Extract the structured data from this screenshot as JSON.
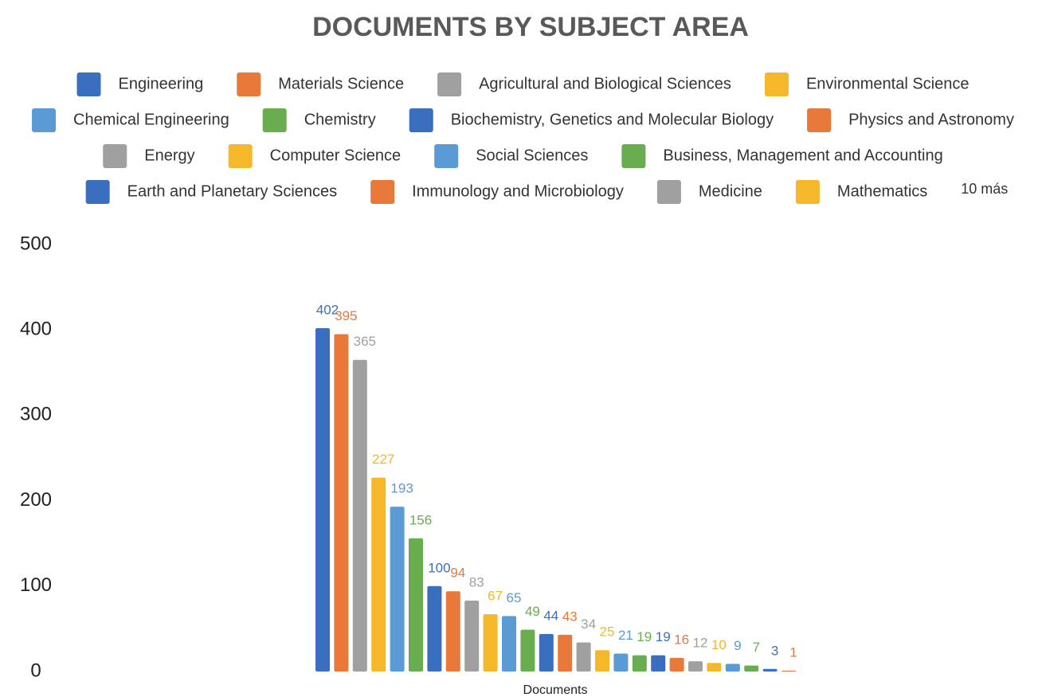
{
  "chart_data": {
    "type": "bar",
    "title": "DOCUMENTS BY SUBJECT AREA",
    "categories": [
      "Documents"
    ],
    "x_label": "Documents",
    "legend_more": "10 más",
    "ylim": [
      0,
      500
    ],
    "yticks": [
      0,
      100,
      200,
      300,
      400,
      500
    ],
    "grid": false,
    "data_labels": true,
    "series": [
      {
        "name": "Engineering",
        "color": "#3a6fbf",
        "values": [
          402
        ]
      },
      {
        "name": "Materials Science",
        "color": "#e8793a",
        "values": [
          395
        ]
      },
      {
        "name": "Agricultural and Biological Sciences",
        "color": "#a0a0a0",
        "values": [
          365
        ]
      },
      {
        "name": "Environmental Science",
        "color": "#f4b82a",
        "values": [
          227
        ]
      },
      {
        "name": "Chemical Engineering",
        "color": "#5a9bd5",
        "values": [
          193
        ]
      },
      {
        "name": "Chemistry",
        "color": "#6aad50",
        "values": [
          156
        ]
      },
      {
        "name": "Biochemistry, Genetics and Molecular Biology",
        "color": "#3a6fbf",
        "values": [
          100
        ]
      },
      {
        "name": "Physics and Astronomy",
        "color": "#e8793a",
        "values": [
          94
        ]
      },
      {
        "name": "Energy",
        "color": "#a0a0a0",
        "values": [
          83
        ]
      },
      {
        "name": "Computer Science",
        "color": "#f4b82a",
        "values": [
          67
        ]
      },
      {
        "name": "Social Sciences",
        "color": "#5a9bd5",
        "values": [
          65
        ]
      },
      {
        "name": "Business, Management and Accounting",
        "color": "#6aad50",
        "values": [
          49
        ]
      },
      {
        "name": "Earth and Planetary Sciences",
        "color": "#3a6fbf",
        "values": [
          44
        ]
      },
      {
        "name": "Immunology and Microbiology",
        "color": "#e8793a",
        "values": [
          43
        ]
      },
      {
        "name": "Medicine",
        "color": "#a0a0a0",
        "values": [
          34
        ]
      },
      {
        "name": "Mathematics",
        "color": "#f4b82a",
        "values": [
          25
        ]
      },
      {
        "name": null,
        "color": "#5a9bd5",
        "values": [
          21
        ]
      },
      {
        "name": null,
        "color": "#6aad50",
        "values": [
          19
        ]
      },
      {
        "name": null,
        "color": "#3a6fbf",
        "values": [
          19
        ]
      },
      {
        "name": null,
        "color": "#e8793a",
        "values": [
          16
        ]
      },
      {
        "name": null,
        "color": "#a0a0a0",
        "values": [
          12
        ]
      },
      {
        "name": null,
        "color": "#f4b82a",
        "values": [
          10
        ]
      },
      {
        "name": null,
        "color": "#5a9bd5",
        "values": [
          9
        ]
      },
      {
        "name": null,
        "color": "#6aad50",
        "values": [
          7
        ]
      },
      {
        "name": null,
        "color": "#3a6fbf",
        "values": [
          3
        ]
      },
      {
        "name": null,
        "color": "#e8793a",
        "values": [
          1
        ]
      }
    ]
  }
}
